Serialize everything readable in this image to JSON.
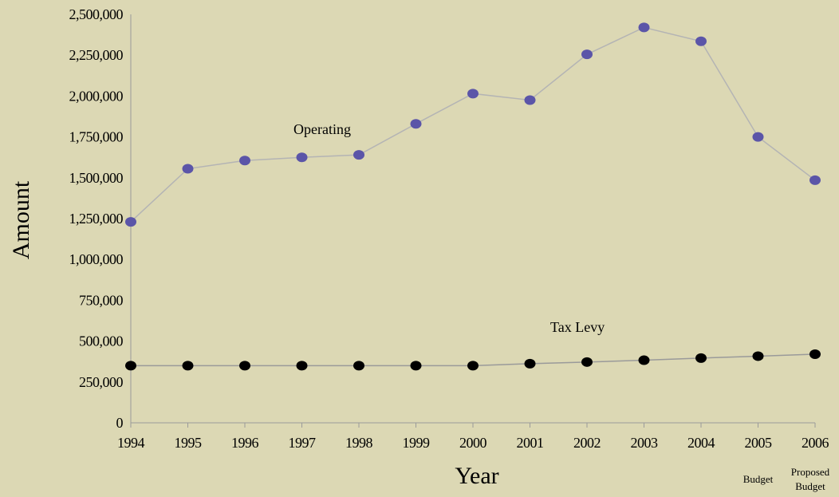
{
  "chart_data": {
    "type": "line",
    "xlabel": "Year",
    "ylabel": "Amount",
    "ylim": [
      0,
      2500000
    ],
    "yticks": [
      0,
      250000,
      500000,
      750000,
      1000000,
      1250000,
      1500000,
      1750000,
      2000000,
      2250000,
      2500000
    ],
    "ytick_labels": [
      "0",
      "250,000",
      "500,000",
      "750,000",
      "1,000,000",
      "1,250,000",
      "1,500,000",
      "1,750,000",
      "2,000,000",
      "2,250,000",
      "2,500,000"
    ],
    "categories": [
      "1994",
      "1995",
      "1996",
      "1997",
      "1998",
      "1999",
      "2000",
      "2001",
      "2002",
      "2003",
      "2004",
      "2005",
      "2006"
    ],
    "category_sublabels": [
      {
        "category": "2005",
        "lines": [
          "Budget"
        ]
      },
      {
        "category": "2006",
        "lines": [
          "Proposed",
          "Budget"
        ]
      }
    ],
    "grid": false,
    "series": [
      {
        "name": "Operating",
        "color": "#5b55a8",
        "line_color": "#b4b4b4",
        "values": [
          1230000,
          1555000,
          1605000,
          1625000,
          1640000,
          1830000,
          2015000,
          1975000,
          2255000,
          2420000,
          2335000,
          1750000,
          1485000
        ]
      },
      {
        "name": "Tax Levy",
        "color": "#000000",
        "line_color": "#9a9a9a",
        "values": [
          350000,
          350000,
          350000,
          350000,
          350000,
          350000,
          350000,
          362000,
          372000,
          383000,
          396000,
          408000,
          420000
        ]
      }
    ]
  }
}
